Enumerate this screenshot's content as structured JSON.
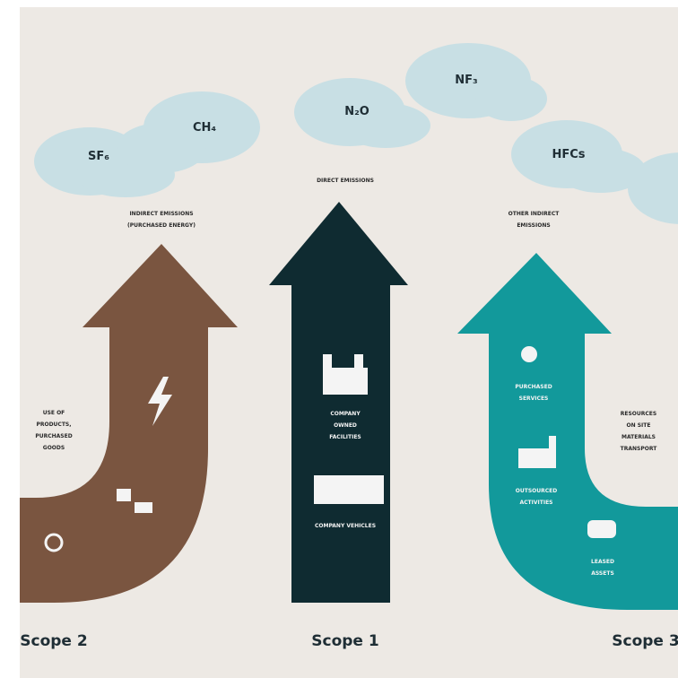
{
  "clouds": [
    "SF₆",
    "CH₄",
    "N₂O",
    "NF₃",
    "HFCs"
  ],
  "scope2": {
    "heading": [
      "INDIRECT EMISSIONS",
      "(PURCHASED ENERGY)"
    ],
    "side": [
      "USE OF",
      "PRODUCTS,",
      "PURCHASED",
      "GOODS"
    ],
    "name": "Scope 2"
  },
  "scope1": {
    "heading": [
      "DIRECT EMISSIONS"
    ],
    "facilities": [
      "COMPANY",
      "OWNED",
      "FACILITIES"
    ],
    "vehicles": [
      "COMPANY VEHICLES"
    ],
    "name": "Scope 1"
  },
  "scope3": {
    "heading": [
      "OTHER INDIRECT",
      "EMISSIONS"
    ],
    "services": [
      "PURCHASED",
      "SERVICES"
    ],
    "outsourced": [
      "OUTSOURCED",
      "ACTIVITIES"
    ],
    "leased": [
      "LEASED",
      "ASSETS"
    ],
    "side": [
      "RESOURCES",
      "ON SITE",
      "MATERIALS",
      "TRANSPORT"
    ],
    "name": "Scope 3"
  }
}
